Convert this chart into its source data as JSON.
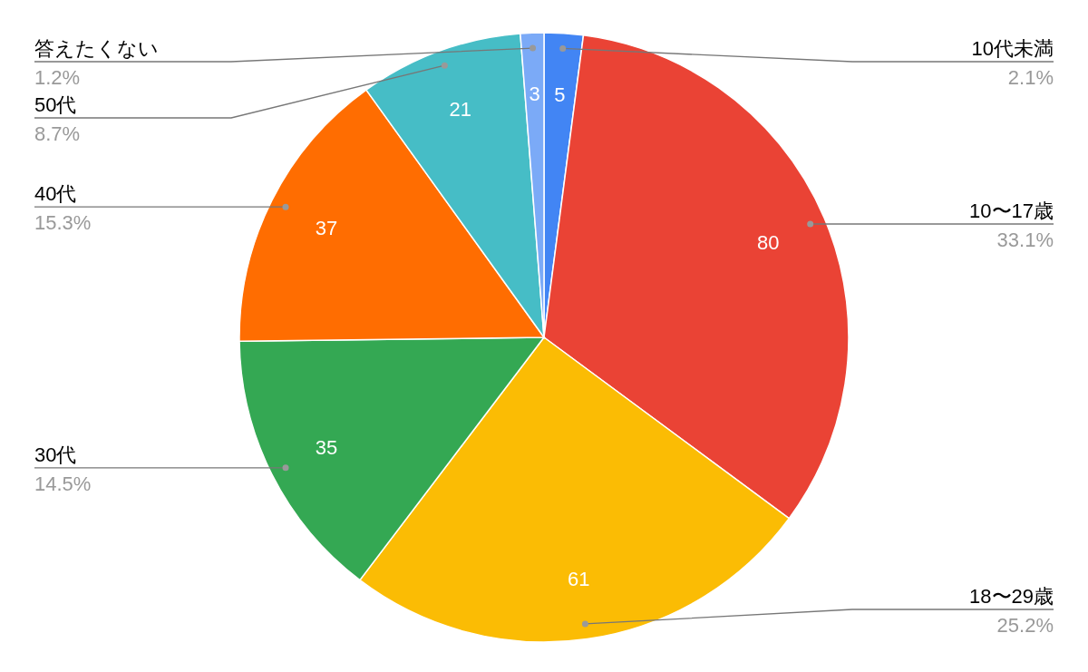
{
  "chart_data": {
    "type": "pie",
    "categories": [
      "10代未満",
      "10〜17歳",
      "18〜29歳",
      "30代",
      "40代",
      "50代",
      "答えたくない"
    ],
    "values": [
      5,
      80,
      61,
      35,
      37,
      21,
      3
    ],
    "colors": [
      "#4285f4",
      "#ea4335",
      "#fbbc04",
      "#34a853",
      "#ff6d01",
      "#46bdc6",
      "#7baaf7"
    ],
    "data_labels": true,
    "annotations": [
      "2.1%",
      "33.1%",
      "25.2%",
      "14.5%",
      "15.3%",
      "8.7%",
      "1.2%"
    ]
  }
}
